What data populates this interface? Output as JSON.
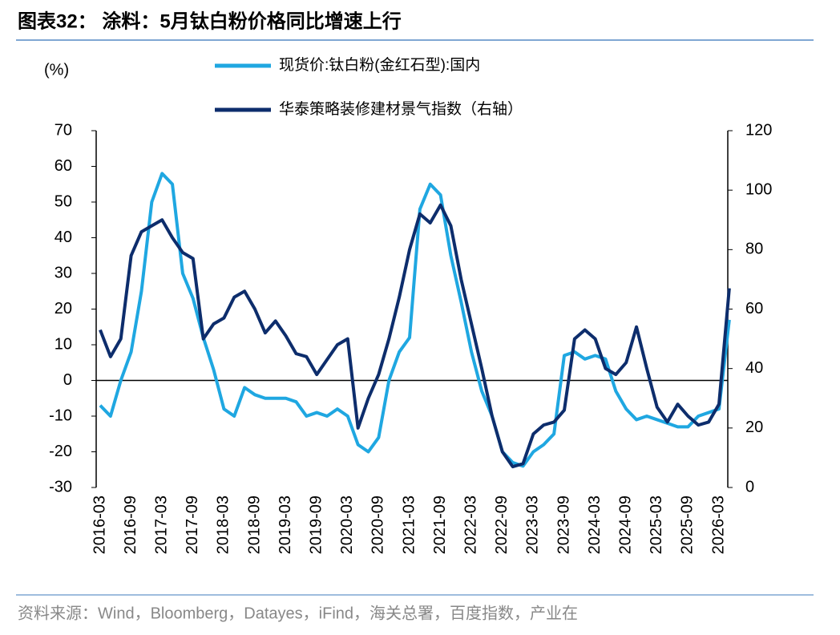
{
  "chart_data": {
    "type": "line",
    "title": "图表32：  涂料：5月钛白粉价格同比增速上行",
    "source": "资料来源：Wind，Bloomberg，Datayes，iFind，海关总署，百度指数，产业在",
    "ylabel": "(%)",
    "categories": [
      "2016-03",
      null,
      null,
      "2016-09",
      null,
      null,
      "2017-03",
      null,
      null,
      "2017-09",
      null,
      null,
      "2018-03",
      null,
      null,
      "2018-09",
      null,
      null,
      "2019-03",
      null,
      null,
      "2019-09",
      null,
      null,
      "2020-03",
      null,
      null,
      "2020-09",
      null,
      null,
      "2021-03",
      null,
      null,
      "2021-09",
      null,
      null,
      "2022-03",
      null,
      null,
      "2022-09",
      null,
      null,
      "2023-03",
      null,
      null,
      "2023-09",
      null,
      null,
      "2024-03",
      null,
      null,
      "2024-09",
      null,
      null,
      "2025-03",
      null,
      null,
      "2025-09",
      null,
      null,
      "2026-03",
      null
    ],
    "series": [
      {
        "name": "现货价:钛白粉(金红石型):国内",
        "color": "#1fa7e1",
        "values": [
          -7,
          -10,
          0,
          8,
          25,
          50,
          58,
          55,
          30,
          23,
          12,
          3,
          -8,
          -10,
          -2,
          -4,
          -5,
          -5,
          -5,
          -6,
          -10,
          -9,
          -10,
          -8,
          -10,
          -18,
          -20,
          -16,
          0,
          8,
          12,
          48,
          55,
          52,
          35,
          22,
          8,
          -3,
          -10,
          -20,
          -23,
          -24,
          -20,
          -18,
          -15,
          7,
          8,
          6,
          7,
          6,
          -3,
          -8,
          -11,
          -10,
          -11,
          -12,
          -13,
          -13,
          -10,
          -9,
          -8,
          17
        ]
      },
      {
        "name": "华泰策略装修建材景气指数（右轴）",
        "color": "#0d2d6c",
        "axis": "y2",
        "values": [
          53,
          44,
          50,
          78,
          86,
          88,
          90,
          84,
          79,
          77,
          50,
          55,
          57,
          64,
          66,
          60,
          52,
          56,
          51,
          45,
          44,
          38,
          43,
          48,
          50,
          20,
          30,
          38,
          50,
          64,
          80,
          92,
          89,
          95,
          88,
          70,
          55,
          40,
          24,
          12,
          7,
          8,
          18,
          21,
          22,
          26,
          50,
          53,
          50,
          40,
          38,
          42,
          54,
          40,
          27,
          22,
          28,
          24,
          21,
          22,
          28,
          67
        ]
      }
    ],
    "ylim": [
      -30,
      70
    ],
    "yticks": [
      -30,
      -20,
      -10,
      0,
      10,
      20,
      30,
      40,
      50,
      60,
      70
    ],
    "y2lim": [
      0,
      120
    ],
    "y2ticks": [
      0,
      20,
      40,
      60,
      80,
      100,
      120
    ]
  }
}
